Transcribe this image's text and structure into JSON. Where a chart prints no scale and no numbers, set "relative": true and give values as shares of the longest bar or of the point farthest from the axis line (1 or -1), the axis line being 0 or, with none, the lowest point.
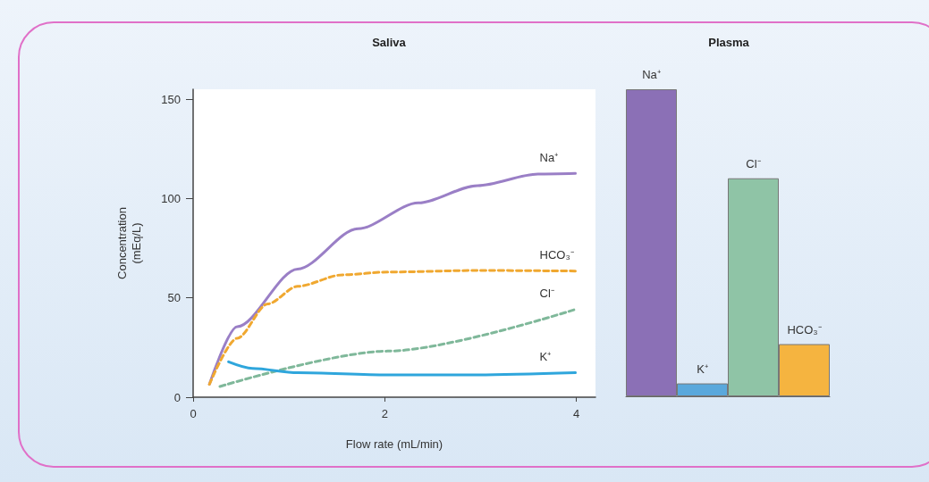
{
  "chart_data": [
    {
      "type": "line",
      "title": "Saliva",
      "xlabel": "Flow rate (mL/min)",
      "ylabel": "Concentration (mEq/L)",
      "xlim": [
        0,
        4.2
      ],
      "xticks": [
        0,
        2,
        4
      ],
      "ylim": [
        0,
        155
      ],
      "yticks": [
        0,
        50,
        100,
        150
      ],
      "grid": false,
      "legend": false,
      "marker": "none",
      "series": [
        {
          "name": "Na⁺",
          "color": "#9a7fc6",
          "line_style": "solid",
          "x": [
            0.17,
            0.46,
            1.09,
            1.72,
            2.35,
            2.97,
            3.6,
            3.99
          ],
          "values": [
            6.5,
            35.5,
            64.5,
            84.8,
            97.8,
            106.5,
            112.3,
            112.6
          ]
        },
        {
          "name": "HCO₃⁻",
          "color": "#f0a830",
          "line_style": "dashed",
          "x": [
            0.17,
            0.46,
            0.78,
            1.09,
            1.56,
            2.03,
            2.97,
            3.99
          ],
          "values": [
            6.5,
            29.7,
            47,
            55.8,
            61.6,
            63,
            63.8,
            63.5
          ]
        },
        {
          "name": "Cl⁻",
          "color": "#7fb89a",
          "line_style": "dashed",
          "x": [
            0.28,
            2.03,
            3.99
          ],
          "values": [
            5.4,
            23.2,
            44.2
          ]
        },
        {
          "name": "K⁺",
          "color": "#2fa6dc",
          "line_style": "solid",
          "x": [
            0.37,
            0.62,
            1.09,
            2.03,
            2.97,
            3.99
          ],
          "values": [
            17.8,
            14.5,
            12.3,
            11.2,
            11.2,
            12.3
          ]
        }
      ]
    },
    {
      "type": "bar",
      "title": "Plasma",
      "relative": true,
      "categories": [
        "Na⁺",
        "K⁺",
        "Cl⁻",
        "HCO₃⁻"
      ],
      "values": [
        1,
        0.042,
        0.71,
        0.17
      ],
      "colors": [
        "#8b70b6",
        "#5aa8dc",
        "#8fc4a6",
        "#f5b440"
      ]
    }
  ]
}
